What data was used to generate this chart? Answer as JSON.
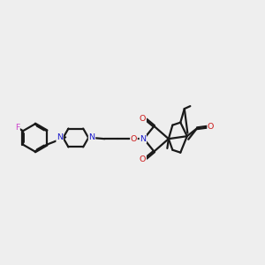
{
  "bg_color": "#eeeeee",
  "bond_color": "#1a1a1a",
  "N_color": "#1a1acc",
  "O_color": "#cc1a1a",
  "F_color": "#cc44cc",
  "lw": 1.6,
  "figsize": [
    3.0,
    3.0
  ],
  "dpi": 100,
  "xlim": [
    0,
    10
  ],
  "ylim": [
    2,
    9
  ]
}
